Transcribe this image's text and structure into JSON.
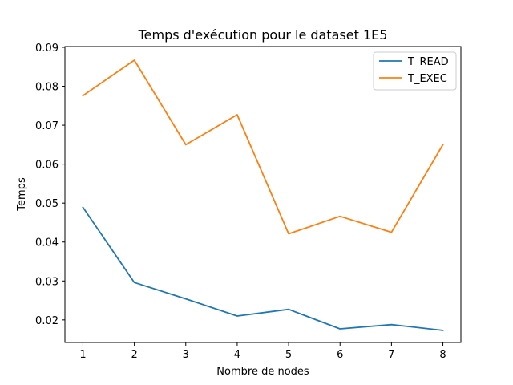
{
  "chart_data": {
    "type": "line",
    "title": "Temps d'exécution pour le dataset  1E5",
    "xlabel": "Nombre de nodes",
    "ylabel": "Temps",
    "x": [
      1,
      2,
      3,
      4,
      5,
      6,
      7,
      8
    ],
    "xticks": [
      "1",
      "2",
      "3",
      "4",
      "5",
      "6",
      "7",
      "8"
    ],
    "xlim": [
      0.65,
      8.35
    ],
    "ylim": [
      0.0142,
      0.0902
    ],
    "yticks": [
      0.02,
      0.03,
      0.04,
      0.05,
      0.06,
      0.07,
      0.08,
      0.09
    ],
    "ytick_labels": [
      "0.02",
      "0.03",
      "0.04",
      "0.05",
      "0.06",
      "0.07",
      "0.08",
      "0.09"
    ],
    "grid": false,
    "legend_position": "top-right",
    "series": [
      {
        "name": "T_READ",
        "color": "#1f77b4",
        "values": [
          0.0489,
          0.0296,
          0.0254,
          0.021,
          0.0227,
          0.0177,
          0.0188,
          0.0173
        ]
      },
      {
        "name": "T_EXEC",
        "color": "#ff7f0e",
        "values": [
          0.0776,
          0.0867,
          0.065,
          0.0727,
          0.0421,
          0.0466,
          0.0425,
          0.065
        ]
      }
    ]
  }
}
